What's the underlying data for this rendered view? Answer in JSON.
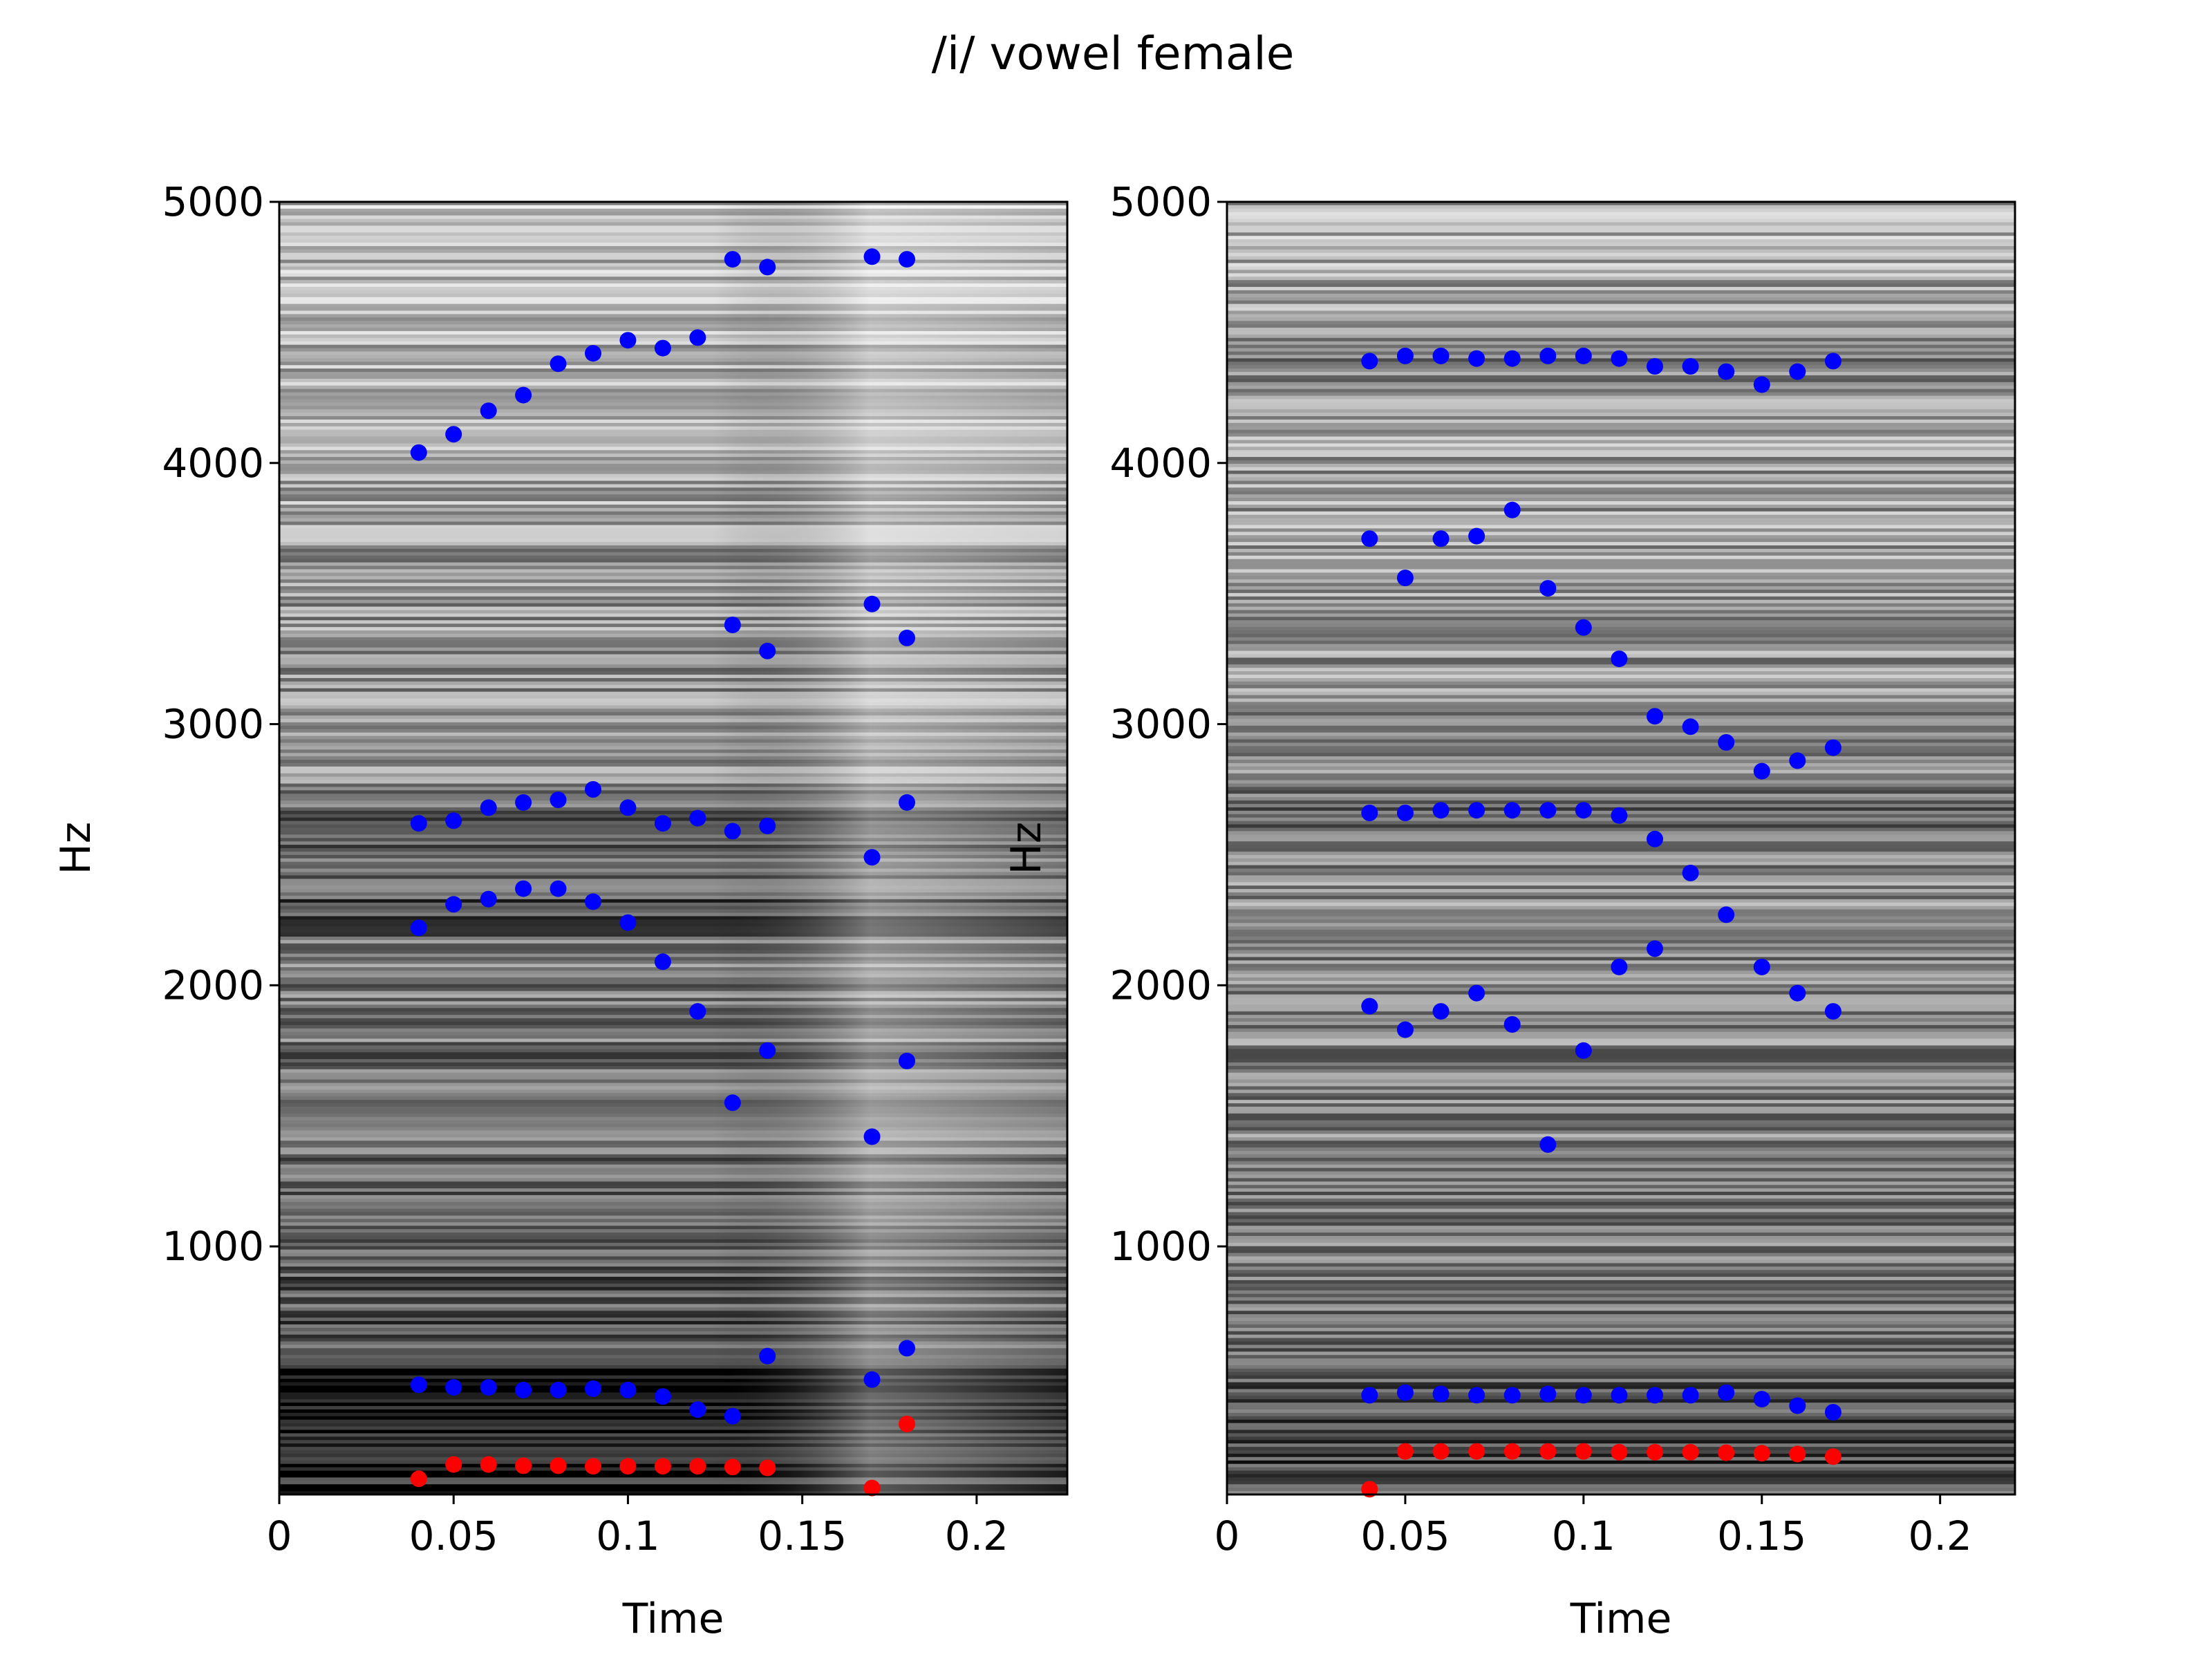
{
  "figure": {
    "title": "/i/ vowel female"
  },
  "chart_data": [
    {
      "type": "scatter",
      "background": "spectrogram-grayscale",
      "xlabel": "Time",
      "ylabel": "Hz",
      "xlim": [
        0,
        0.226
      ],
      "ylim": [
        50,
        5000
      ],
      "xticks": [
        0,
        0.05,
        0.1,
        0.15,
        0.2
      ],
      "xtick_labels": [
        "0",
        "0.05",
        "0.1",
        "0.15",
        "0.2"
      ],
      "yticks": [
        1000,
        2000,
        3000,
        4000,
        5000
      ],
      "ytick_labels": [
        "1000",
        "2000",
        "3000",
        "4000",
        "5000"
      ],
      "series": [
        {
          "color": "#ff0000",
          "points": [
            [
              0.04,
              110
            ],
            [
              0.05,
              165
            ],
            [
              0.06,
              165
            ],
            [
              0.07,
              160
            ],
            [
              0.08,
              160
            ],
            [
              0.09,
              158
            ],
            [
              0.1,
              158
            ],
            [
              0.11,
              158
            ],
            [
              0.12,
              158
            ],
            [
              0.13,
              155
            ],
            [
              0.14,
              152
            ],
            [
              0.17,
              75
            ],
            [
              0.18,
              320
            ]
          ]
        },
        {
          "color": "#0000ff",
          "points": [
            [
              0.04,
              470
            ],
            [
              0.05,
              460
            ],
            [
              0.06,
              460
            ],
            [
              0.07,
              450
            ],
            [
              0.08,
              450
            ],
            [
              0.09,
              455
            ],
            [
              0.1,
              450
            ],
            [
              0.11,
              425
            ],
            [
              0.12,
              375
            ],
            [
              0.13,
              350
            ],
            [
              0.14,
              580
            ],
            [
              0.17,
              490
            ],
            [
              0.18,
              610
            ],
            [
              0.04,
              2220
            ],
            [
              0.05,
              2310
            ],
            [
              0.06,
              2330
            ],
            [
              0.07,
              2370
            ],
            [
              0.08,
              2370
            ],
            [
              0.09,
              2320
            ],
            [
              0.1,
              2240
            ],
            [
              0.11,
              2090
            ],
            [
              0.12,
              1900
            ],
            [
              0.13,
              1550
            ],
            [
              0.14,
              1750
            ],
            [
              0.17,
              1420
            ],
            [
              0.18,
              1710
            ],
            [
              0.04,
              2620
            ],
            [
              0.05,
              2630
            ],
            [
              0.06,
              2680
            ],
            [
              0.07,
              2700
            ],
            [
              0.08,
              2710
            ],
            [
              0.09,
              2750
            ],
            [
              0.1,
              2680
            ],
            [
              0.11,
              2620
            ],
            [
              0.12,
              2640
            ],
            [
              0.13,
              2590
            ],
            [
              0.14,
              2610
            ],
            [
              0.17,
              2490
            ],
            [
              0.18,
              2700
            ],
            [
              0.13,
              3380
            ],
            [
              0.14,
              3280
            ],
            [
              0.17,
              3460
            ],
            [
              0.18,
              3330
            ],
            [
              0.04,
              4040
            ],
            [
              0.05,
              4110
            ],
            [
              0.06,
              4200
            ],
            [
              0.07,
              4260
            ],
            [
              0.08,
              4380
            ],
            [
              0.09,
              4420
            ],
            [
              0.1,
              4470
            ],
            [
              0.11,
              4440
            ],
            [
              0.12,
              4480
            ],
            [
              0.13,
              4780
            ],
            [
              0.14,
              4750
            ],
            [
              0.17,
              4790
            ],
            [
              0.18,
              4780
            ]
          ]
        }
      ]
    },
    {
      "type": "scatter",
      "background": "spectrogram-grayscale",
      "xlabel": "Time",
      "ylabel": "Hz",
      "xlim": [
        0,
        0.221
      ],
      "ylim": [
        50,
        5000
      ],
      "xticks": [
        0,
        0.05,
        0.1,
        0.15,
        0.2
      ],
      "xtick_labels": [
        "0",
        "0.05",
        "0.1",
        "0.15",
        "0.2"
      ],
      "yticks": [
        1000,
        2000,
        3000,
        4000,
        5000
      ],
      "ytick_labels": [
        "1000",
        "2000",
        "3000",
        "4000",
        "5000"
      ],
      "series": [
        {
          "color": "#ff0000",
          "points": [
            [
              0.04,
              70
            ],
            [
              0.05,
              215
            ],
            [
              0.06,
              215
            ],
            [
              0.07,
              215
            ],
            [
              0.08,
              215
            ],
            [
              0.09,
              215
            ],
            [
              0.1,
              215
            ],
            [
              0.11,
              212
            ],
            [
              0.12,
              212
            ],
            [
              0.13,
              212
            ],
            [
              0.14,
              210
            ],
            [
              0.15,
              208
            ],
            [
              0.16,
              205
            ],
            [
              0.17,
              195
            ]
          ]
        },
        {
          "color": "#0000ff",
          "points": [
            [
              0.04,
              430
            ],
            [
              0.05,
              440
            ],
            [
              0.06,
              435
            ],
            [
              0.07,
              430
            ],
            [
              0.08,
              430
            ],
            [
              0.09,
              435
            ],
            [
              0.1,
              430
            ],
            [
              0.11,
              430
            ],
            [
              0.12,
              430
            ],
            [
              0.13,
              430
            ],
            [
              0.14,
              440
            ],
            [
              0.15,
              415
            ],
            [
              0.16,
              390
            ],
            [
              0.17,
              365
            ],
            [
              0.04,
              1920
            ],
            [
              0.05,
              1830
            ],
            [
              0.06,
              1900
            ],
            [
              0.07,
              1970
            ],
            [
              0.08,
              1850
            ],
            [
              0.09,
              1390
            ],
            [
              0.1,
              1750
            ],
            [
              0.11,
              2070
            ],
            [
              0.12,
              2140
            ],
            [
              0.13,
              2430
            ],
            [
              0.14,
              2270
            ],
            [
              0.15,
              2070
            ],
            [
              0.16,
              1970
            ],
            [
              0.17,
              1900
            ],
            [
              0.04,
              2660
            ],
            [
              0.05,
              2660
            ],
            [
              0.06,
              2670
            ],
            [
              0.07,
              2670
            ],
            [
              0.08,
              2670
            ],
            [
              0.09,
              2670
            ],
            [
              0.1,
              2670
            ],
            [
              0.11,
              2650
            ],
            [
              0.12,
              2560
            ],
            [
              0.04,
              3710
            ],
            [
              0.05,
              3560
            ],
            [
              0.06,
              3710
            ],
            [
              0.07,
              3720
            ],
            [
              0.08,
              3820
            ],
            [
              0.09,
              3520
            ],
            [
              0.1,
              3370
            ],
            [
              0.11,
              3250
            ],
            [
              0.12,
              3030
            ],
            [
              0.13,
              2990
            ],
            [
              0.14,
              2930
            ],
            [
              0.15,
              2820
            ],
            [
              0.16,
              2860
            ],
            [
              0.17,
              2910
            ],
            [
              0.04,
              4390
            ],
            [
              0.05,
              4410
            ],
            [
              0.06,
              4410
            ],
            [
              0.07,
              4400
            ],
            [
              0.08,
              4400
            ],
            [
              0.09,
              4410
            ],
            [
              0.1,
              4410
            ],
            [
              0.11,
              4400
            ],
            [
              0.12,
              4370
            ],
            [
              0.13,
              4370
            ],
            [
              0.14,
              4350
            ],
            [
              0.15,
              4300
            ],
            [
              0.16,
              4350
            ],
            [
              0.17,
              4390
            ]
          ]
        }
      ]
    }
  ]
}
